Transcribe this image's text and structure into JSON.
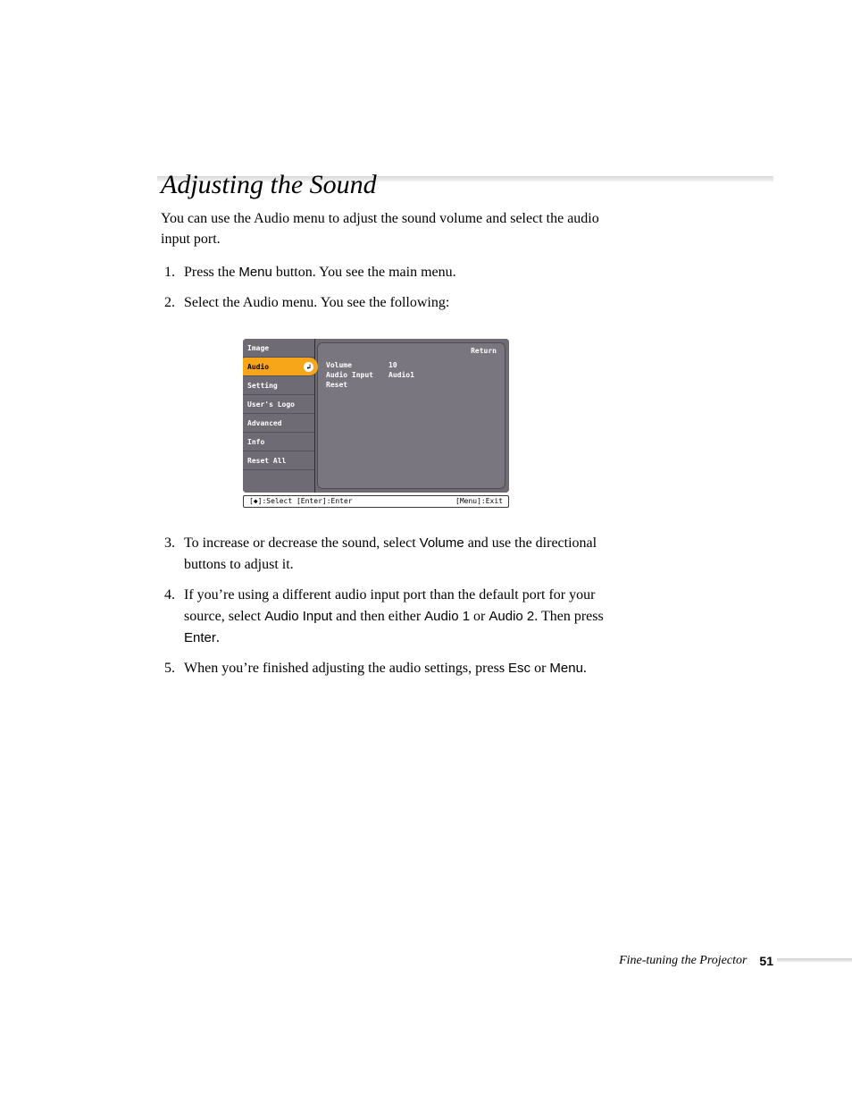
{
  "heading": "Adjusting the Sound",
  "intro": "You can use the Audio menu to adjust the sound volume and select the audio input port.",
  "steps": {
    "s1_a": "Press the ",
    "s1_menu": "Menu",
    "s1_b": " button. You see the main menu.",
    "s2": "Select the Audio menu. You see the following:",
    "s3_a": "To increase or decrease the sound, select ",
    "s3_vol": "Volume",
    "s3_b": " and use the directional buttons to adjust it.",
    "s4_a": "If you’re using a different audio input port than the default port for your source, select ",
    "s4_ai": "Audio Input",
    "s4_b": " and then either ",
    "s4_a1": "Audio 1",
    "s4_c": " or ",
    "s4_a2": "Audio 2",
    "s4_d": ". Then press ",
    "s4_enter": "Enter",
    "s4_e": ".",
    "s5_a": "When you’re finished adjusting the audio settings, press ",
    "s5_esc": "Esc",
    "s5_b": " or ",
    "s5_menu": "Menu",
    "s5_c": "."
  },
  "osd": {
    "menu_items": {
      "image": "Image",
      "audio": "Audio",
      "setting": "Setting",
      "users_logo": "User's Logo",
      "advanced": "Advanced",
      "info": "Info",
      "reset_all": "Reset All"
    },
    "return": "Return",
    "rows": {
      "volume_k": "Volume",
      "volume_v": "10",
      "audio_input_k": "Audio Input",
      "audio_input_v": "Audio1",
      "reset_k": "Reset",
      "reset_v": ""
    },
    "help_left": "[◆]:Select [Enter]:Enter",
    "help_right": "[Menu]:Exit",
    "colors": {
      "panel_bg": "#6f6b74",
      "selected_bg": "#f7a61a",
      "text_light": "#ffffff",
      "text_dark": "#000000"
    }
  },
  "footer": {
    "text": "Fine-tuning the Projector",
    "page": "51"
  }
}
